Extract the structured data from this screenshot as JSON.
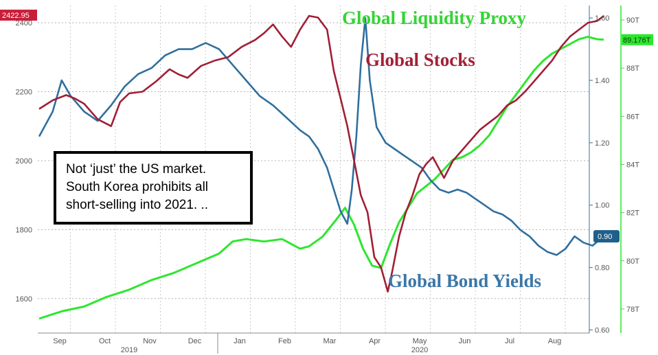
{
  "chart_data": {
    "type": "line",
    "titles": {
      "liquidity": "Global Liquidity Proxy",
      "stocks": "Global Stocks",
      "yields": "Global Bond Yields"
    },
    "annotation": "Not ‘just’ the US market. South Korea prohibits all short-selling into 2021. ..",
    "x_months": [
      "Sep",
      "Oct",
      "Nov",
      "Dec",
      "Jan",
      "Feb",
      "Mar",
      "Apr",
      "May",
      "Jun",
      "Jul",
      "Aug"
    ],
    "x_years": [
      "2019",
      "2020"
    ],
    "left_axis": {
      "ticks": [
        "1600",
        "1800",
        "2000",
        "2200",
        "2400"
      ],
      "ylim": [
        1500,
        2450
      ]
    },
    "right_axis_yields": {
      "ticks": [
        "0.60",
        "0.80",
        "1.00",
        "1.20",
        "1.40",
        "1.60"
      ],
      "ylim": [
        0.59,
        1.64
      ]
    },
    "right_axis_liquidity": {
      "ticks": [
        "78T",
        "80T",
        "82T",
        "84T",
        "86T",
        "88T",
        "90T"
      ],
      "ylim": [
        77.0,
        90.6
      ]
    },
    "last_value_labels": {
      "stocks": "2422.95",
      "liquidity": "89.176T",
      "yields": "0.90"
    },
    "colors": {
      "stocks": "#a01e35",
      "yields": "#2f6f9e",
      "liquidity": "#2ee62e",
      "liquidity_title": "#35d435",
      "stocks_title": "#a32035",
      "yields_title": "#3a77a8"
    },
    "series": [
      {
        "name": "Global Stocks",
        "axis": "left",
        "points": [
          [
            0.0,
            2150
          ],
          [
            0.3,
            2175
          ],
          [
            0.6,
            2190
          ],
          [
            0.8,
            2180
          ],
          [
            1.0,
            2165
          ],
          [
            1.3,
            2120
          ],
          [
            1.6,
            2100
          ],
          [
            1.8,
            2170
          ],
          [
            2.0,
            2195
          ],
          [
            2.3,
            2200
          ],
          [
            2.6,
            2230
          ],
          [
            2.9,
            2265
          ],
          [
            3.1,
            2250
          ],
          [
            3.3,
            2240
          ],
          [
            3.6,
            2275
          ],
          [
            3.9,
            2290
          ],
          [
            4.2,
            2300
          ],
          [
            4.5,
            2330
          ],
          [
            4.8,
            2350
          ],
          [
            5.0,
            2370
          ],
          [
            5.2,
            2395
          ],
          [
            5.4,
            2360
          ],
          [
            5.6,
            2330
          ],
          [
            5.8,
            2380
          ],
          [
            6.0,
            2420
          ],
          [
            6.2,
            2415
          ],
          [
            6.4,
            2380
          ],
          [
            6.55,
            2260
          ],
          [
            6.7,
            2180
          ],
          [
            6.85,
            2100
          ],
          [
            7.0,
            2000
          ],
          [
            7.15,
            1900
          ],
          [
            7.3,
            1850
          ],
          [
            7.45,
            1720
          ],
          [
            7.6,
            1690
          ],
          [
            7.75,
            1620
          ],
          [
            7.85,
            1680
          ],
          [
            8.0,
            1780
          ],
          [
            8.15,
            1850
          ],
          [
            8.3,
            1900
          ],
          [
            8.45,
            1960
          ],
          [
            8.6,
            1990
          ],
          [
            8.75,
            2010
          ],
          [
            9.0,
            1950
          ],
          [
            9.2,
            2000
          ],
          [
            9.4,
            2030
          ],
          [
            9.6,
            2060
          ],
          [
            9.8,
            2090
          ],
          [
            10.0,
            2110
          ],
          [
            10.2,
            2130
          ],
          [
            10.4,
            2160
          ],
          [
            10.6,
            2175
          ],
          [
            10.8,
            2200
          ],
          [
            11.0,
            2230
          ],
          [
            11.2,
            2260
          ],
          [
            11.4,
            2290
          ],
          [
            11.6,
            2330
          ],
          [
            11.8,
            2360
          ],
          [
            12.0,
            2380
          ],
          [
            12.2,
            2400
          ],
          [
            12.4,
            2405
          ],
          [
            12.55,
            2420
          ]
        ]
      },
      {
        "name": "Global Bond Yields",
        "axis": "right_yields",
        "points": [
          [
            0.0,
            1.22
          ],
          [
            0.3,
            1.3
          ],
          [
            0.5,
            1.4
          ],
          [
            0.7,
            1.35
          ],
          [
            1.0,
            1.3
          ],
          [
            1.3,
            1.27
          ],
          [
            1.6,
            1.32
          ],
          [
            1.9,
            1.38
          ],
          [
            2.2,
            1.42
          ],
          [
            2.5,
            1.44
          ],
          [
            2.8,
            1.48
          ],
          [
            3.1,
            1.5
          ],
          [
            3.4,
            1.5
          ],
          [
            3.7,
            1.52
          ],
          [
            4.0,
            1.5
          ],
          [
            4.3,
            1.45
          ],
          [
            4.6,
            1.4
          ],
          [
            4.9,
            1.35
          ],
          [
            5.2,
            1.32
          ],
          [
            5.5,
            1.28
          ],
          [
            5.8,
            1.24
          ],
          [
            6.0,
            1.22
          ],
          [
            6.2,
            1.18
          ],
          [
            6.4,
            1.12
          ],
          [
            6.55,
            1.05
          ],
          [
            6.7,
            0.98
          ],
          [
            6.85,
            0.94
          ],
          [
            6.95,
            1.05
          ],
          [
            7.05,
            1.22
          ],
          [
            7.15,
            1.45
          ],
          [
            7.25,
            1.6
          ],
          [
            7.35,
            1.4
          ],
          [
            7.5,
            1.25
          ],
          [
            7.7,
            1.2
          ],
          [
            7.9,
            1.18
          ],
          [
            8.1,
            1.16
          ],
          [
            8.3,
            1.14
          ],
          [
            8.5,
            1.12
          ],
          [
            8.7,
            1.08
          ],
          [
            8.9,
            1.05
          ],
          [
            9.1,
            1.04
          ],
          [
            9.3,
            1.05
          ],
          [
            9.5,
            1.04
          ],
          [
            9.7,
            1.02
          ],
          [
            9.9,
            1.0
          ],
          [
            10.1,
            0.98
          ],
          [
            10.3,
            0.97
          ],
          [
            10.5,
            0.95
          ],
          [
            10.7,
            0.92
          ],
          [
            10.9,
            0.9
          ],
          [
            11.1,
            0.87
          ],
          [
            11.3,
            0.85
          ],
          [
            11.5,
            0.84
          ],
          [
            11.7,
            0.86
          ],
          [
            11.9,
            0.9
          ],
          [
            12.1,
            0.88
          ],
          [
            12.3,
            0.87
          ],
          [
            12.55,
            0.9
          ]
        ]
      },
      {
        "name": "Global Liquidity Proxy",
        "axis": "right_liquidity",
        "points": [
          [
            0.0,
            77.6
          ],
          [
            0.5,
            77.9
          ],
          [
            1.0,
            78.1
          ],
          [
            1.5,
            78.5
          ],
          [
            2.0,
            78.8
          ],
          [
            2.5,
            79.2
          ],
          [
            3.0,
            79.5
          ],
          [
            3.5,
            79.9
          ],
          [
            4.0,
            80.3
          ],
          [
            4.3,
            80.8
          ],
          [
            4.6,
            80.9
          ],
          [
            5.0,
            80.8
          ],
          [
            5.4,
            80.9
          ],
          [
            5.8,
            80.5
          ],
          [
            6.0,
            80.6
          ],
          [
            6.3,
            81.0
          ],
          [
            6.6,
            81.7
          ],
          [
            6.8,
            82.2
          ],
          [
            7.0,
            81.5
          ],
          [
            7.2,
            80.5
          ],
          [
            7.4,
            79.8
          ],
          [
            7.6,
            79.7
          ],
          [
            7.8,
            80.7
          ],
          [
            8.0,
            81.6
          ],
          [
            8.2,
            82.2
          ],
          [
            8.4,
            82.8
          ],
          [
            8.6,
            83.1
          ],
          [
            8.8,
            83.4
          ],
          [
            9.0,
            83.8
          ],
          [
            9.2,
            84.2
          ],
          [
            9.4,
            84.3
          ],
          [
            9.6,
            84.5
          ],
          [
            9.8,
            84.8
          ],
          [
            10.0,
            85.2
          ],
          [
            10.2,
            85.8
          ],
          [
            10.4,
            86.4
          ],
          [
            10.6,
            86.9
          ],
          [
            10.8,
            87.4
          ],
          [
            11.0,
            87.9
          ],
          [
            11.2,
            88.3
          ],
          [
            11.4,
            88.6
          ],
          [
            11.6,
            88.8
          ],
          [
            11.8,
            89.0
          ],
          [
            12.0,
            89.2
          ],
          [
            12.2,
            89.3
          ],
          [
            12.4,
            89.2
          ],
          [
            12.55,
            89.18
          ]
        ]
      }
    ]
  }
}
